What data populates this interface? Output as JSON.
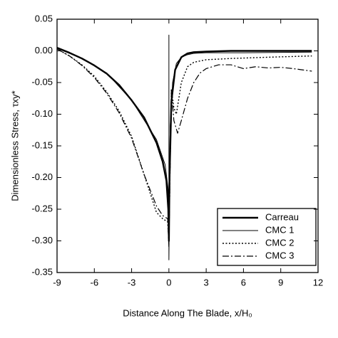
{
  "chart_data": {
    "type": "line",
    "x_label": "Distance Along The Blade, x/H₀",
    "y_label": "Dimensionless Stress, τxy*",
    "xlim": [
      -9,
      12
    ],
    "xticks": [
      -9,
      -6,
      -3,
      0,
      3,
      6,
      9,
      12
    ],
    "ylim": [
      -0.35,
      0.05
    ],
    "yticks": [
      0.05,
      {
        "value": 0,
        "label": "0.00"
      },
      -0.05,
      {
        "value": -0.1,
        "label": "-0.10"
      },
      -0.15,
      {
        "value": -0.2,
        "label": "-0.20"
      },
      -0.25,
      {
        "value": -0.3,
        "label": "-0.30"
      },
      -0.35
    ],
    "legend": "lower right",
    "series": [
      {
        "name": "Carreau",
        "color": "#000000",
        "style": "thick",
        "x": [
          -9,
          -8,
          -7,
          -6,
          -5,
          -4,
          -3,
          -2,
          -1,
          -0.5,
          -0.2,
          -0.05,
          0,
          0.05,
          0.2,
          0.5,
          1,
          1.5,
          2,
          3,
          5,
          8,
          11.5
        ],
        "values": [
          0.005,
          -0.003,
          -0.012,
          -0.023,
          -0.036,
          -0.054,
          -0.078,
          -0.105,
          -0.145,
          -0.175,
          -0.205,
          -0.25,
          -0.3,
          -0.2,
          -0.08,
          -0.03,
          -0.01,
          -0.004,
          -0.002,
          -0.001,
          0,
          0,
          0
        ]
      },
      {
        "name": "CMC 1",
        "color": "#000000",
        "style": "solid",
        "x": [
          -9,
          -7,
          -5,
          -3,
          -1,
          -0.3,
          -0.05,
          0,
          0,
          0,
          0.1,
          0.3,
          0.6,
          1,
          1.5,
          2,
          3,
          6,
          11.5
        ],
        "values": [
          0.004,
          -0.012,
          -0.035,
          -0.078,
          -0.14,
          -0.18,
          -0.22,
          -0.3,
          0.025,
          -0.33,
          -0.12,
          -0.05,
          -0.02,
          -0.01,
          -0.006,
          -0.004,
          -0.003,
          -0.003,
          -0.002
        ]
      },
      {
        "name": "CMC 2",
        "color": "#000000",
        "style": "dotted",
        "x": [
          -9,
          -8,
          -7,
          -6,
          -5,
          -4,
          -3,
          -2,
          -1,
          -0.5,
          -0.1,
          0,
          0.2,
          0.4,
          0.6,
          1,
          1.5,
          2,
          3,
          5,
          8,
          11.5
        ],
        "values": [
          0.003,
          -0.008,
          -0.022,
          -0.04,
          -0.065,
          -0.095,
          -0.135,
          -0.195,
          -0.255,
          -0.265,
          -0.27,
          -0.3,
          -0.06,
          -0.09,
          -0.1,
          -0.05,
          -0.025,
          -0.018,
          -0.014,
          -0.012,
          -0.01,
          -0.008
        ]
      },
      {
        "name": "CMC 3",
        "color": "#000000",
        "style": "dashdot",
        "x": [
          -9,
          -8,
          -7,
          -6,
          -5,
          -4,
          -3,
          -2,
          -1,
          -0.5,
          -0.1,
          0,
          0.2,
          0.4,
          0.7,
          1,
          1.5,
          2,
          2.5,
          3,
          4,
          5,
          6,
          7,
          8,
          9,
          10,
          11.5
        ],
        "values": [
          0.003,
          -0.008,
          -0.023,
          -0.042,
          -0.067,
          -0.098,
          -0.138,
          -0.195,
          -0.245,
          -0.26,
          -0.265,
          -0.31,
          -0.06,
          -0.11,
          -0.13,
          -0.11,
          -0.075,
          -0.05,
          -0.035,
          -0.028,
          -0.022,
          -0.022,
          -0.028,
          -0.025,
          -0.027,
          -0.026,
          -0.028,
          -0.032
        ]
      }
    ]
  }
}
